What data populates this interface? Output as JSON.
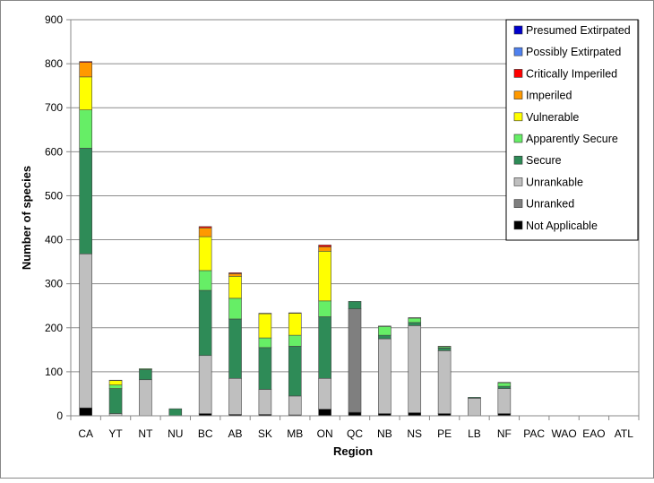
{
  "chart_data": {
    "type": "bar",
    "stacked": true,
    "xlabel": "Region",
    "ylabel": "Number of species",
    "ylim": [
      0,
      900
    ],
    "yticks": [
      0,
      100,
      200,
      300,
      400,
      500,
      600,
      700,
      800,
      900
    ],
    "grid": true,
    "legend_position": "top-right",
    "categories": [
      "CA",
      "YT",
      "NT",
      "NU",
      "BC",
      "AB",
      "SK",
      "MB",
      "ON",
      "QC",
      "NB",
      "NS",
      "PE",
      "LB",
      "NF",
      "PAC",
      "WAO",
      "EAO",
      "ATL"
    ],
    "series": [
      {
        "name": "Not Applicable",
        "color": "#000000",
        "values": [
          18,
          0,
          0,
          0,
          5,
          3,
          3,
          2,
          15,
          8,
          5,
          7,
          5,
          0,
          5,
          0,
          0,
          0,
          0
        ]
      },
      {
        "name": "Unranked",
        "color": "#7f7f7f",
        "values": [
          0,
          0,
          0,
          0,
          0,
          0,
          0,
          0,
          0,
          235,
          0,
          0,
          0,
          0,
          0,
          0,
          0,
          0,
          0
        ]
      },
      {
        "name": "Unrankable",
        "color": "#bfbfbf",
        "values": [
          350,
          5,
          82,
          0,
          132,
          82,
          57,
          43,
          70,
          0,
          170,
          198,
          143,
          40,
          57,
          0,
          0,
          0,
          0
        ]
      },
      {
        "name": "Secure",
        "color": "#2e8b57",
        "values": [
          240,
          57,
          23,
          16,
          148,
          135,
          95,
          113,
          140,
          17,
          8,
          7,
          6,
          2,
          5,
          0,
          0,
          0,
          0
        ]
      },
      {
        "name": "Apparently Secure",
        "color": "#66ee66",
        "values": [
          87,
          8,
          2,
          0,
          45,
          47,
          22,
          25,
          36,
          0,
          20,
          10,
          3,
          0,
          8,
          0,
          0,
          0,
          0
        ]
      },
      {
        "name": "Vulnerable",
        "color": "#ffff00",
        "values": [
          75,
          10,
          0,
          0,
          77,
          50,
          55,
          50,
          113,
          0,
          0,
          0,
          0,
          0,
          0,
          0,
          0,
          0,
          0
        ]
      },
      {
        "name": "Imperiled",
        "color": "#ff9900",
        "values": [
          33,
          0,
          0,
          0,
          20,
          6,
          0,
          0,
          10,
          0,
          0,
          0,
          0,
          0,
          0,
          0,
          0,
          0,
          0
        ]
      },
      {
        "name": "Critically Imperiled",
        "color": "#ff0000",
        "values": [
          2,
          1,
          0,
          0,
          3,
          2,
          1,
          1,
          4,
          0,
          1,
          1,
          1,
          0,
          1,
          0,
          0,
          0,
          0
        ]
      },
      {
        "name": "Possibly Extirpated",
        "color": "#4f81ef",
        "values": [
          0,
          0,
          0,
          0,
          0,
          0,
          0,
          0,
          0,
          0,
          0,
          0,
          0,
          0,
          0,
          0,
          0,
          0,
          0
        ]
      },
      {
        "name": "Presumed Extirpated",
        "color": "#0000cc",
        "values": [
          0,
          0,
          0,
          0,
          0,
          0,
          0,
          0,
          0,
          0,
          0,
          0,
          0,
          0,
          0,
          0,
          0,
          0,
          0
        ]
      }
    ],
    "legend_order": [
      "Presumed Extirpated",
      "Possibly Extirpated",
      "Critically Imperiled",
      "Imperiled",
      "Vulnerable",
      "Apparently Secure",
      "Secure",
      "Unrankable",
      "Unranked",
      "Not Applicable"
    ]
  }
}
